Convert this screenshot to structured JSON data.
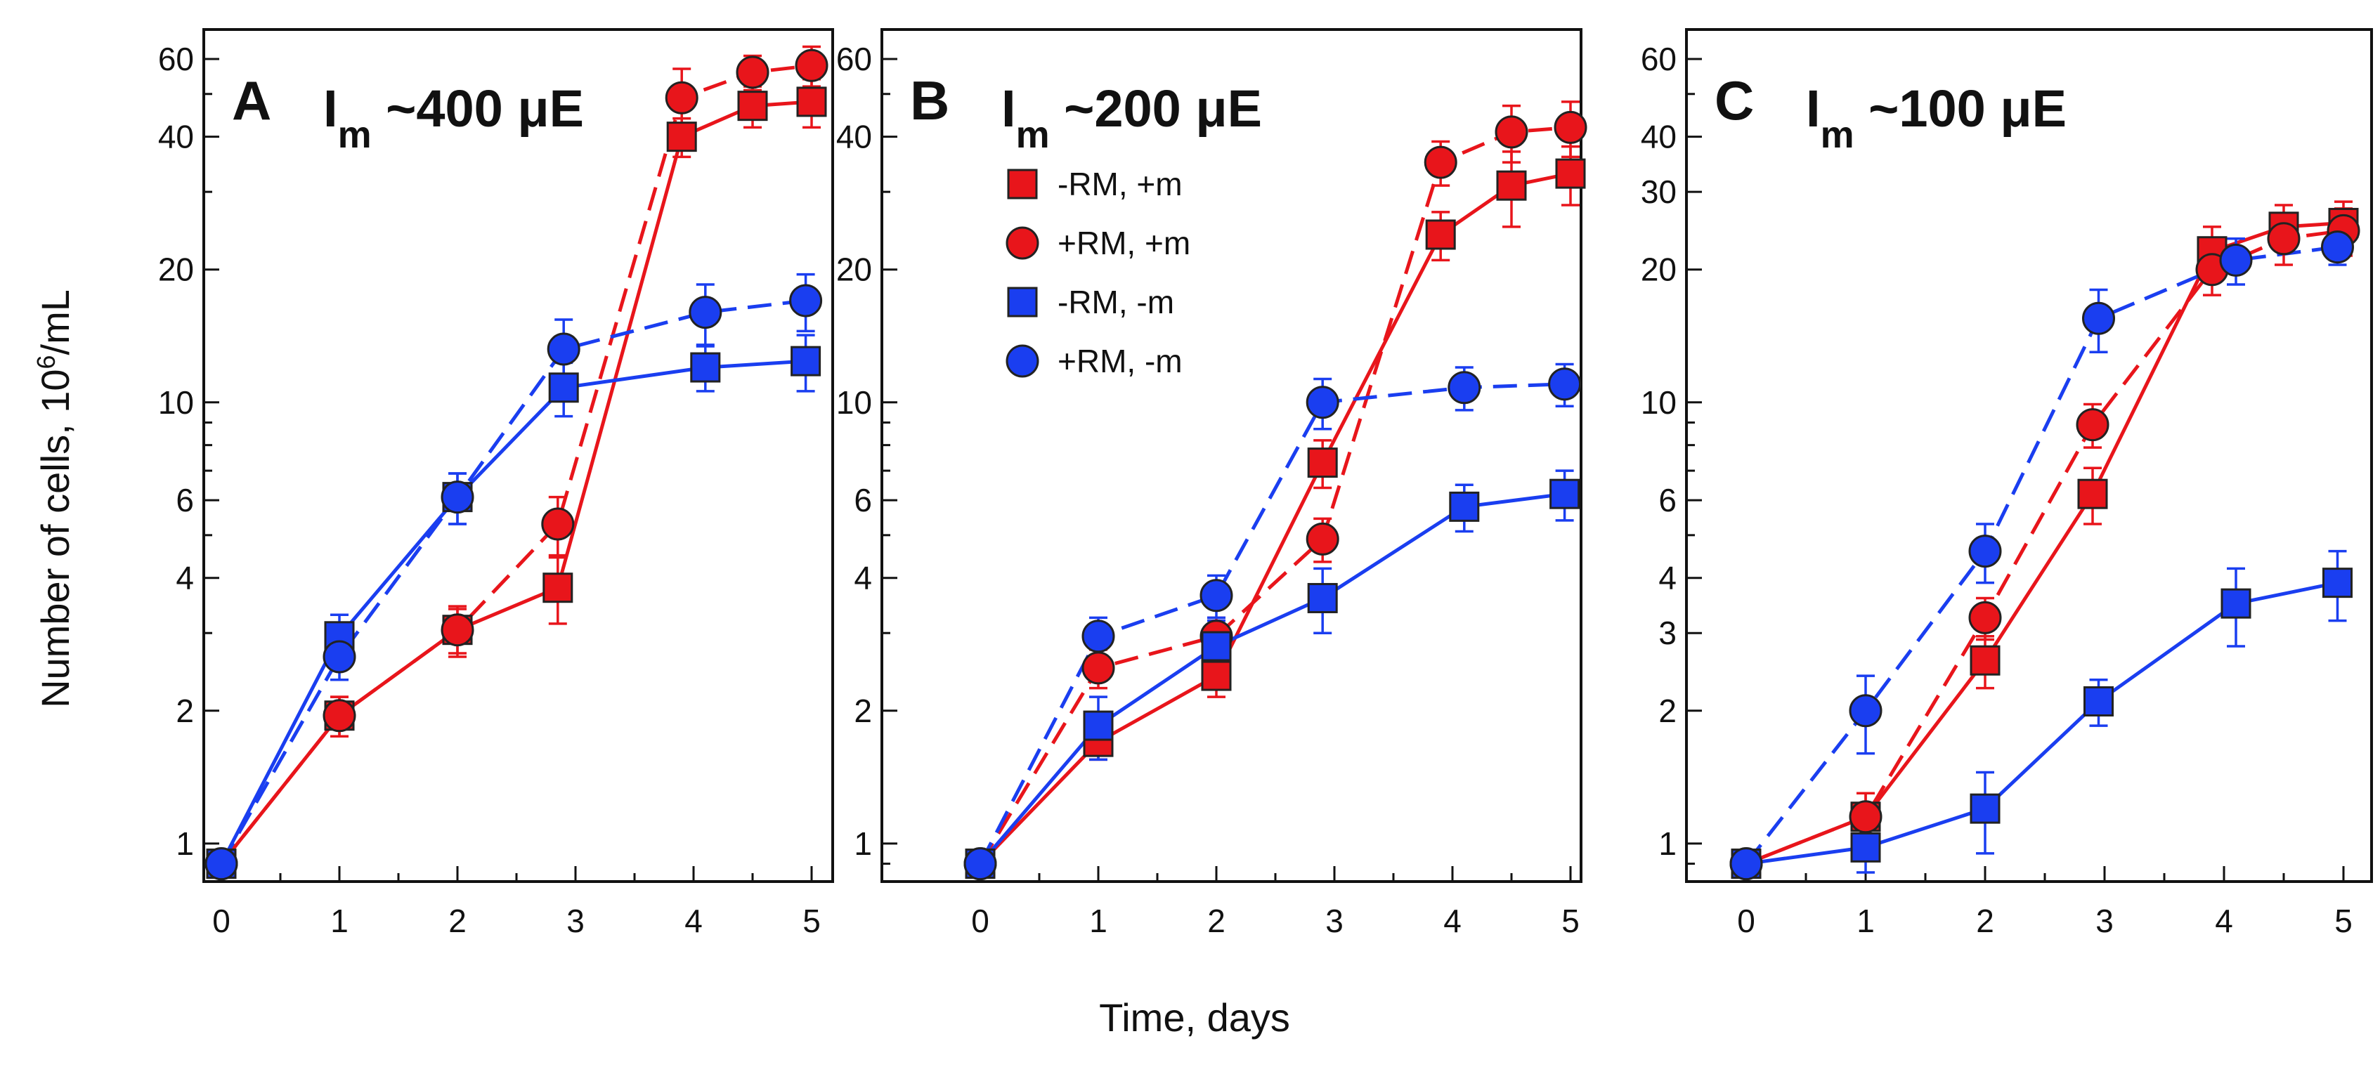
{
  "figure": {
    "ylabel": "Number of cells, 10^6/mL",
    "ylabel_base": "Number of cells, 10",
    "ylabel_exp": "6",
    "ylabel_unit": "/mL",
    "xlabel": "Time, days"
  },
  "legend": {
    "items": [
      {
        "label": "-RM, +m",
        "color": "#e8151b",
        "marker": "square",
        "dashed": false
      },
      {
        "label": "+RM, +m",
        "color": "#e8151b",
        "marker": "circle",
        "dashed": true
      },
      {
        "label": "-RM, -m",
        "color": "#1a3ef0",
        "marker": "square",
        "dashed": false
      },
      {
        "label": "+RM, -m",
        "color": "#1a3ef0",
        "marker": "circle",
        "dashed": true
      }
    ]
  },
  "colors": {
    "red": "#e8151b",
    "blue": "#1a3ef0",
    "axis": "#111111"
  },
  "chart_data": [
    {
      "type": "line",
      "panel": "A",
      "title": "Im ~400 μE",
      "title_main": "I",
      "title_sub": "m",
      "title_rest": " ~400 μE",
      "xlabel": "Time, days",
      "ylabel": "Number of cells, 10^6/mL",
      "yscale": "log",
      "xlim": [
        -0.1,
        5.15
      ],
      "ylim": [
        0.82,
        70
      ],
      "xticks": [
        0,
        1,
        2,
        3,
        4,
        5
      ],
      "yticks": [
        1,
        2,
        4,
        6,
        10,
        20,
        40,
        60
      ],
      "series": [
        {
          "name": "-RM, +m",
          "color": "#e8151b",
          "marker": "square",
          "dashed": false,
          "x": [
            0,
            1,
            2,
            2.85,
            3.9,
            4.5,
            5
          ],
          "y": [
            0.9,
            1.95,
            3.05,
            3.8,
            40,
            47,
            48
          ],
          "err": [
            0,
            0.2,
            0.4,
            0.65,
            4,
            5,
            6
          ]
        },
        {
          "name": "+RM, +m",
          "color": "#e8151b",
          "marker": "circle",
          "dashed": true,
          "x": [
            0,
            1,
            2,
            2.85,
            3.9,
            4.5,
            5
          ],
          "y": [
            0.9,
            1.95,
            3.05,
            5.3,
            49,
            56,
            58
          ],
          "err": [
            0,
            0.2,
            0.35,
            0.8,
            8,
            5,
            6
          ]
        },
        {
          "name": "-RM, -m",
          "color": "#1a3ef0",
          "marker": "square",
          "dashed": false,
          "x": [
            0,
            1,
            2,
            2.9,
            4.1,
            4.95
          ],
          "y": [
            0.9,
            2.95,
            6.1,
            10.8,
            12,
            12.4
          ],
          "err": [
            0,
            0.35,
            0.8,
            1.5,
            1.4,
            1.8
          ]
        },
        {
          "name": "+RM, -m",
          "color": "#1a3ef0",
          "marker": "circle",
          "dashed": true,
          "x": [
            0,
            1,
            2,
            2.9,
            4.1,
            4.95
          ],
          "y": [
            0.9,
            2.65,
            6.1,
            13.2,
            16,
            17
          ],
          "err": [
            0,
            0.3,
            0.8,
            2.2,
            2.5,
            2.5
          ]
        }
      ]
    },
    {
      "type": "line",
      "panel": "B",
      "title": "Im ~200 μE",
      "title_main": "I",
      "title_sub": "m",
      "title_rest": " ~200 μE",
      "xlabel": "Time, days",
      "ylabel": "Number of cells, 10^6/mL",
      "yscale": "log",
      "xlim": [
        -0.1,
        5.15
      ],
      "ylim": [
        0.82,
        70
      ],
      "xticks": [
        0,
        1,
        2,
        3,
        4,
        5
      ],
      "yticks": [
        1,
        2,
        4,
        6,
        10,
        20,
        40,
        60
      ],
      "legend_position": "top-left",
      "series": [
        {
          "name": "-RM, +m",
          "color": "#e8151b",
          "marker": "square",
          "dashed": false,
          "x": [
            0,
            1,
            2,
            2.9,
            3.9,
            4.5,
            5
          ],
          "y": [
            0.9,
            1.7,
            2.4,
            7.3,
            24,
            31,
            33
          ],
          "err": [
            0,
            0.15,
            0.25,
            0.9,
            3,
            6,
            5
          ]
        },
        {
          "name": "+RM, +m",
          "color": "#e8151b",
          "marker": "circle",
          "dashed": true,
          "x": [
            0,
            1,
            2,
            2.9,
            3.9,
            4.5,
            5
          ],
          "y": [
            0.9,
            2.5,
            2.95,
            4.9,
            35,
            41,
            42
          ],
          "err": [
            0,
            0.25,
            0.3,
            0.55,
            4,
            6,
            6
          ]
        },
        {
          "name": "-RM, -m",
          "color": "#1a3ef0",
          "marker": "square",
          "dashed": false,
          "x": [
            0,
            1,
            2,
            2.9,
            4.1,
            4.95
          ],
          "y": [
            0.9,
            1.85,
            2.8,
            3.6,
            5.8,
            6.2
          ],
          "err": [
            0,
            0.3,
            0.4,
            0.6,
            0.7,
            0.8
          ]
        },
        {
          "name": "+RM, -m",
          "color": "#1a3ef0",
          "marker": "circle",
          "dashed": true,
          "x": [
            0,
            1,
            2,
            2.9,
            4.1,
            4.95
          ],
          "y": [
            0.9,
            2.95,
            3.65,
            10,
            10.8,
            11
          ],
          "err": [
            0,
            0.3,
            0.4,
            1.3,
            1.2,
            1.2
          ]
        }
      ]
    },
    {
      "type": "line",
      "panel": "C",
      "title": "Im ~100 μE",
      "title_main": "I",
      "title_sub": "m",
      "title_rest": " ~100 μE",
      "xlabel": "Time, days",
      "ylabel": "Number of cells, 10^6/mL",
      "yscale": "log",
      "xlim": [
        -0.1,
        5.15
      ],
      "ylim": [
        0.82,
        70
      ],
      "xticks": [
        0,
        1,
        2,
        3,
        4,
        5
      ],
      "yticks": [
        1,
        2,
        3,
        4,
        6,
        10,
        20,
        30,
        40,
        60
      ],
      "series": [
        {
          "name": "-RM, +m",
          "color": "#e8151b",
          "marker": "square",
          "dashed": false,
          "x": [
            0,
            1,
            2,
            2.9,
            3.9,
            4.5,
            5
          ],
          "y": [
            0.9,
            1.15,
            2.6,
            6.2,
            22,
            25,
            25.5
          ],
          "err": [
            0,
            0.15,
            0.35,
            0.9,
            3,
            3,
            3
          ]
        },
        {
          "name": "+RM, +m",
          "color": "#e8151b",
          "marker": "circle",
          "dashed": true,
          "x": [
            0,
            1,
            2,
            2.9,
            3.9,
            4.5,
            5
          ],
          "y": [
            0.9,
            1.15,
            3.25,
            8.9,
            20,
            23.5,
            24.5
          ],
          "err": [
            0,
            0.15,
            0.35,
            1,
            2.5,
            3,
            3
          ]
        },
        {
          "name": "-RM, -m",
          "color": "#1a3ef0",
          "marker": "square",
          "dashed": false,
          "x": [
            0,
            1,
            2,
            2.95,
            4.1,
            4.95
          ],
          "y": [
            0.9,
            0.98,
            1.2,
            2.1,
            3.5,
            3.9
          ],
          "err": [
            0,
            0.12,
            0.25,
            0.25,
            0.7,
            0.7
          ]
        },
        {
          "name": "+RM, -m",
          "color": "#1a3ef0",
          "marker": "circle",
          "dashed": true,
          "x": [
            0,
            1,
            2,
            2.95,
            4.1,
            4.95
          ],
          "y": [
            0.9,
            2.0,
            4.6,
            15.5,
            21,
            22.5
          ],
          "err": [
            0,
            0.4,
            0.7,
            2.5,
            2.5,
            2
          ]
        }
      ]
    }
  ]
}
